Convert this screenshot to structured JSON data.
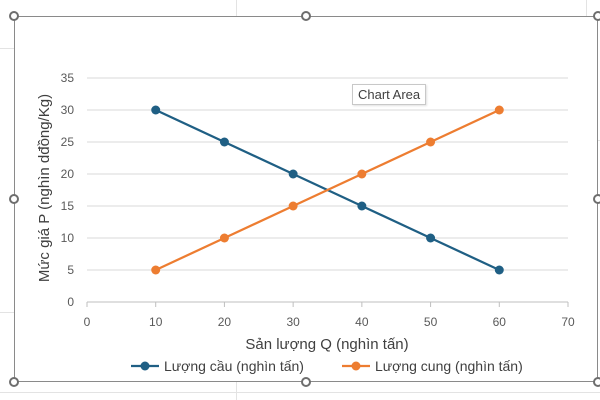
{
  "tooltip": {
    "label": "Chart Area"
  },
  "colors": {
    "series_demand": "#1f5f84",
    "series_supply": "#ed7d31",
    "grid": "#d9d9d9",
    "axis_text": "#595959"
  },
  "chart_data": {
    "type": "line",
    "title": "",
    "xlabel": "Sản lượng Q (nghìn tấn)",
    "ylabel": "Mức giá P (nghìn dđồng/Kg)",
    "xlim": [
      0,
      70
    ],
    "ylim": [
      0,
      35
    ],
    "x_ticks": [
      "0",
      "10",
      "20",
      "30",
      "40",
      "50",
      "60",
      "70"
    ],
    "y_ticks": [
      "0",
      "5",
      "10",
      "15",
      "20",
      "25",
      "30",
      "35"
    ],
    "grid": "horizontal",
    "legend": "bottom",
    "series": [
      {
        "name": "Lượng cầu (nghìn tấn)",
        "color": "#1f5f84",
        "x": [
          10,
          20,
          30,
          40,
          50,
          60
        ],
        "y": [
          30,
          25,
          20,
          15,
          10,
          5
        ]
      },
      {
        "name": "Lượng cung (nghìn tấn)",
        "color": "#ed7d31",
        "x": [
          10,
          20,
          30,
          40,
          50,
          60
        ],
        "y": [
          5,
          10,
          15,
          20,
          25,
          30
        ]
      }
    ]
  }
}
